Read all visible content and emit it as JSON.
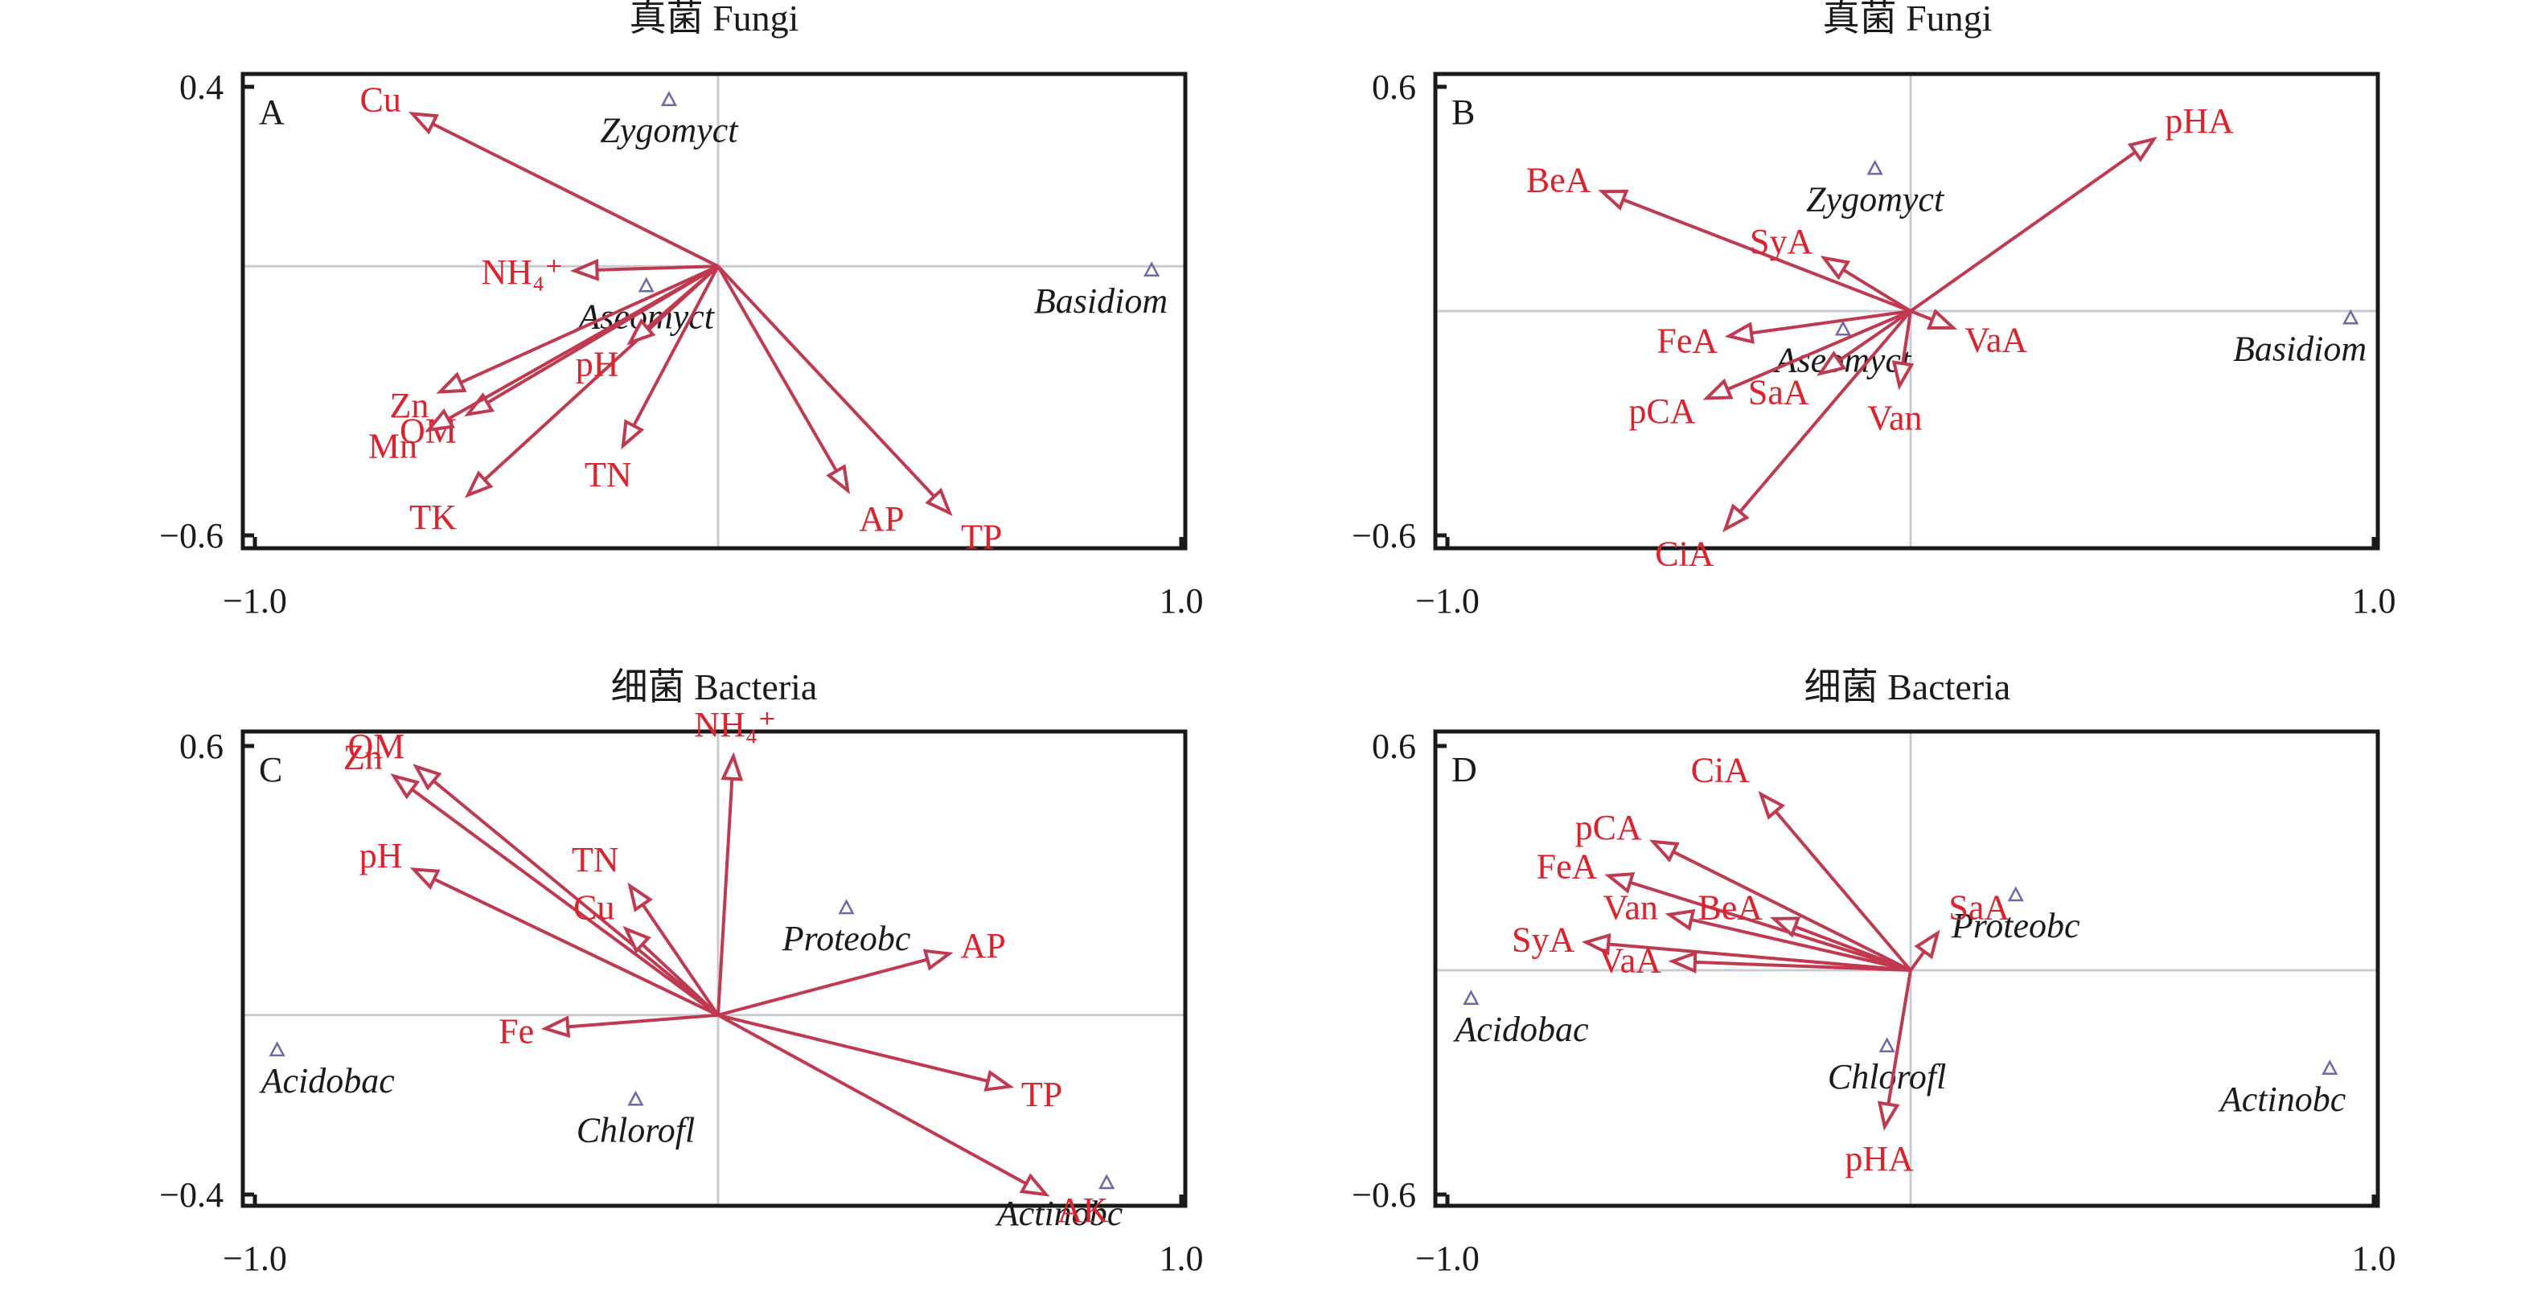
{
  "chart_data": [
    {
      "id": "A",
      "type": "scatter",
      "subtype": "rda-biplot",
      "title": "真菌 Fungi",
      "xlim": [
        -1.0,
        1.0
      ],
      "ylim": [
        -0.6,
        0.4
      ],
      "xticks": [
        "−1.0",
        "1.0"
      ],
      "xtick_values": [
        -1.0,
        1.0
      ],
      "yticks": [
        "0.4",
        "−0.6"
      ],
      "ytick_values": [
        0.4,
        -0.6
      ],
      "grid": false,
      "zero_lines": true,
      "vectors": [
        {
          "label": "Cu",
          "x": -0.66,
          "y": 0.34
        },
        {
          "label": "NH₄⁺",
          "x": -0.31,
          "y": -0.01
        },
        {
          "label": "Zn",
          "x": -0.6,
          "y": -0.28
        },
        {
          "label": "OM",
          "x": -0.54,
          "y": -0.33
        },
        {
          "label": "Mn",
          "x": -0.625,
          "y": -0.365
        },
        {
          "label": "TK",
          "x": -0.54,
          "y": -0.51
        },
        {
          "label": "pH",
          "x": -0.19,
          "y": -0.17
        },
        {
          "label": "TN",
          "x": -0.205,
          "y": -0.4
        },
        {
          "label": "AP",
          "x": 0.28,
          "y": -0.5
        },
        {
          "label": "TP",
          "x": 0.5,
          "y": -0.55
        }
      ],
      "species": [
        {
          "label": "Zygomyct",
          "x": -0.106,
          "y": 0.37
        },
        {
          "label": "Aseomyct",
          "x": -0.155,
          "y": -0.045
        },
        {
          "label": "Basidiom",
          "x": 0.936,
          "y": -0.01
        }
      ]
    },
    {
      "id": "B",
      "type": "scatter",
      "subtype": "rda-biplot",
      "title": "真菌 Fungi",
      "xlim": [
        -1.0,
        1.0
      ],
      "ylim": [
        -0.6,
        0.6
      ],
      "xticks": [
        "−1.0",
        "1.0"
      ],
      "xtick_values": [
        -1.0,
        1.0
      ],
      "yticks": [
        "0.6",
        "−0.6"
      ],
      "ytick_values": [
        0.6,
        -0.6
      ],
      "grid": false,
      "zero_lines": true,
      "vectors": [
        {
          "label": "pHA",
          "x": 0.525,
          "y": 0.46
        },
        {
          "label": "BeA",
          "x": -0.666,
          "y": 0.32
        },
        {
          "label": "SyA",
          "x": -0.187,
          "y": 0.142
        },
        {
          "label": "FeA",
          "x": -0.392,
          "y": -0.067
        },
        {
          "label": "VaA",
          "x": 0.092,
          "y": -0.045
        },
        {
          "label": "pCA",
          "x": -0.44,
          "y": -0.233
        },
        {
          "label": "SaA",
          "x": -0.195,
          "y": -0.167
        },
        {
          "label": "Van",
          "x": -0.024,
          "y": -0.2
        },
        {
          "label": "CiA",
          "x": -0.4,
          "y": -0.583
        }
      ],
      "species": [
        {
          "label": "Zygomyct",
          "x": -0.077,
          "y": 0.38
        },
        {
          "label": "Aseomyct",
          "x": -0.146,
          "y": -0.05
        },
        {
          "label": "Basidiom",
          "x": 0.95,
          "y": -0.02
        }
      ]
    },
    {
      "id": "C",
      "type": "scatter",
      "subtype": "rda-biplot",
      "title": "细菌 Bacteria",
      "xlim": [
        -1.0,
        1.0
      ],
      "ylim": [
        -0.4,
        0.6
      ],
      "xticks": [
        "−1.0",
        "1.0"
      ],
      "xtick_values": [
        -1.0,
        1.0
      ],
      "yticks": [
        "0.6",
        "−0.4"
      ],
      "ytick_values": [
        0.6,
        -0.4
      ],
      "grid": false,
      "zero_lines": true,
      "vectors": [
        {
          "label": "OM",
          "x": -0.652,
          "y": 0.554
        },
        {
          "label": "Zn",
          "x": -0.7,
          "y": 0.533
        },
        {
          "label": "NH₄⁺",
          "x": 0.033,
          "y": 0.577
        },
        {
          "label": "pH",
          "x": -0.657,
          "y": 0.325
        },
        {
          "label": "TN",
          "x": -0.19,
          "y": 0.288
        },
        {
          "label": "Cu",
          "x": -0.199,
          "y": 0.192
        },
        {
          "label": "AP",
          "x": 0.499,
          "y": 0.137
        },
        {
          "label": "Fe",
          "x": -0.373,
          "y": -0.03
        },
        {
          "label": "TP",
          "x": 0.63,
          "y": -0.159
        },
        {
          "label": "AK",
          "x": 0.708,
          "y": -0.4
        }
      ],
      "species": [
        {
          "label": "Proteobc",
          "x": 0.277,
          "y": 0.238
        },
        {
          "label": "Acidobac",
          "x": -0.952,
          "y": -0.079
        },
        {
          "label": "Chlorofl",
          "x": -0.178,
          "y": -0.189
        },
        {
          "label": "Actinobc",
          "x": 0.839,
          "y": -0.375
        }
      ]
    },
    {
      "id": "D",
      "type": "scatter",
      "subtype": "rda-biplot",
      "title": "细菌 Bacteria",
      "xlim": [
        -1.0,
        1.0
      ],
      "ylim": [
        -0.6,
        0.6
      ],
      "xticks": [
        "−1.0",
        "1.0"
      ],
      "xtick_values": [
        -1.0,
        1.0
      ],
      "yticks": [
        "0.6",
        "−0.6"
      ],
      "ytick_values": [
        0.6,
        -0.6
      ],
      "grid": false,
      "zero_lines": true,
      "vectors": [
        {
          "label": "CiA",
          "x": -0.323,
          "y": 0.471
        },
        {
          "label": "pCA",
          "x": -0.556,
          "y": 0.344
        },
        {
          "label": "FeA",
          "x": -0.652,
          "y": 0.253
        },
        {
          "label": "BeA",
          "x": -0.295,
          "y": 0.138
        },
        {
          "label": "Van",
          "x": -0.521,
          "y": 0.149
        },
        {
          "label": "SyA",
          "x": -0.701,
          "y": 0.075
        },
        {
          "label": "VaA",
          "x": -0.514,
          "y": 0.024
        },
        {
          "label": "SaA",
          "x": 0.058,
          "y": 0.099
        },
        {
          "label": "pHA",
          "x": -0.056,
          "y": -0.418
        }
      ],
      "species": [
        {
          "label": "Proteobc",
          "x": 0.227,
          "y": 0.2
        },
        {
          "label": "Acidobac",
          "x": -0.949,
          "y": -0.077
        },
        {
          "label": "Chlorofl",
          "x": -0.051,
          "y": -0.204
        },
        {
          "label": "Actinobc",
          "x": 0.905,
          "y": -0.264
        }
      ]
    }
  ],
  "colors": {
    "vector": "#c0394f",
    "vector_label": "#e0202a",
    "species_marker": "#6a6aa8",
    "species_label": "#1a1a1a"
  }
}
